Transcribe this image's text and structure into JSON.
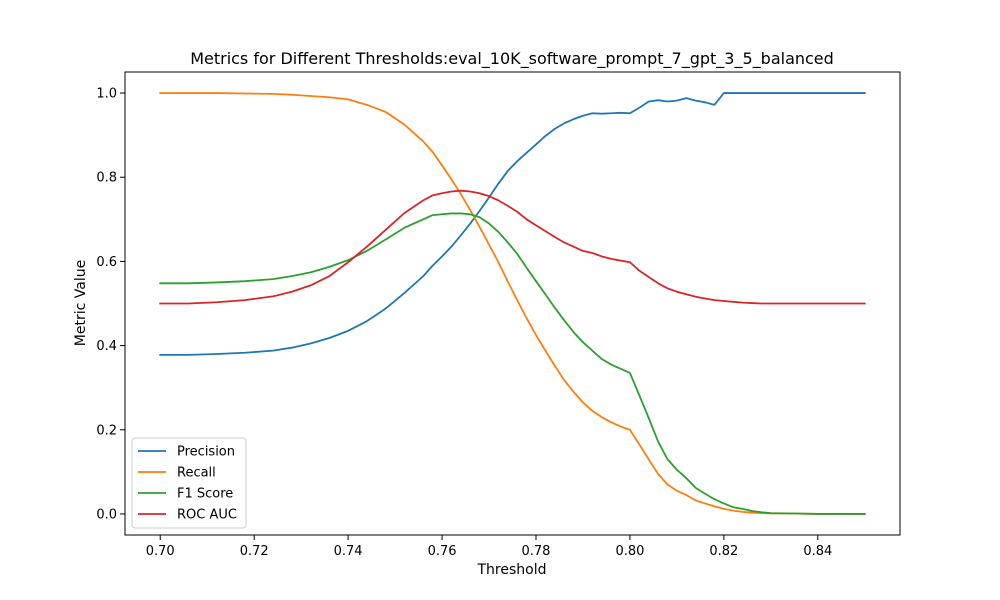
{
  "chart_data": {
    "type": "line",
    "title": "Metrics for Different Thresholds:eval_10K_software_prompt_7_gpt_3_5_balanced",
    "xlabel": "Threshold",
    "ylabel": "Metric Value",
    "xlim": [
      0.6925,
      0.8575
    ],
    "ylim": [
      -0.05,
      1.05
    ],
    "xticks": [
      0.7,
      0.72,
      0.74,
      0.76,
      0.78,
      0.8,
      0.82,
      0.84
    ],
    "xtick_labels": [
      "0.70",
      "0.72",
      "0.74",
      "0.76",
      "0.78",
      "0.80",
      "0.82",
      "0.84"
    ],
    "yticks": [
      0.0,
      0.2,
      0.4,
      0.6,
      0.8,
      1.0
    ],
    "ytick_labels": [
      "0.0",
      "0.2",
      "0.4",
      "0.6",
      "0.8",
      "1.0"
    ],
    "grid": false,
    "legend_position": "lower-left",
    "x": [
      0.7,
      0.706,
      0.712,
      0.718,
      0.724,
      0.728,
      0.732,
      0.736,
      0.74,
      0.744,
      0.748,
      0.752,
      0.756,
      0.758,
      0.76,
      0.762,
      0.764,
      0.766,
      0.768,
      0.77,
      0.772,
      0.774,
      0.776,
      0.778,
      0.78,
      0.782,
      0.784,
      0.786,
      0.788,
      0.79,
      0.792,
      0.794,
      0.796,
      0.798,
      0.8,
      0.802,
      0.804,
      0.806,
      0.808,
      0.81,
      0.812,
      0.814,
      0.816,
      0.818,
      0.82,
      0.822,
      0.824,
      0.826,
      0.828,
      0.83,
      0.835,
      0.84,
      0.845,
      0.85
    ],
    "series": [
      {
        "name": "Precision",
        "color": "#1f77b4",
        "values": [
          0.378,
          0.378,
          0.38,
          0.383,
          0.388,
          0.395,
          0.405,
          0.418,
          0.435,
          0.458,
          0.488,
          0.525,
          0.565,
          0.59,
          0.612,
          0.635,
          0.662,
          0.69,
          0.72,
          0.752,
          0.785,
          0.815,
          0.838,
          0.858,
          0.878,
          0.898,
          0.915,
          0.928,
          0.938,
          0.946,
          0.952,
          0.951,
          0.952,
          0.953,
          0.952,
          0.965,
          0.98,
          0.983,
          0.98,
          0.982,
          0.988,
          0.982,
          0.978,
          0.972,
          1.0,
          1.0,
          1.0,
          1.0,
          1.0,
          1.0,
          1.0,
          1.0,
          1.0,
          1.0
        ]
      },
      {
        "name": "Recall",
        "color": "#ff7f0e",
        "values": [
          1.0,
          1.0,
          1.0,
          0.999,
          0.998,
          0.996,
          0.993,
          0.99,
          0.985,
          0.972,
          0.955,
          0.925,
          0.885,
          0.86,
          0.828,
          0.795,
          0.76,
          0.722,
          0.682,
          0.64,
          0.598,
          0.552,
          0.508,
          0.465,
          0.425,
          0.388,
          0.352,
          0.318,
          0.29,
          0.265,
          0.245,
          0.23,
          0.218,
          0.208,
          0.2,
          0.165,
          0.13,
          0.095,
          0.07,
          0.055,
          0.045,
          0.032,
          0.025,
          0.018,
          0.012,
          0.008,
          0.005,
          0.003,
          0.002,
          0.001,
          0.001,
          0.0,
          0.0,
          0.0
        ]
      },
      {
        "name": "F1 Score",
        "color": "#2ca02c",
        "values": [
          0.548,
          0.548,
          0.55,
          0.553,
          0.558,
          0.565,
          0.574,
          0.587,
          0.603,
          0.625,
          0.652,
          0.68,
          0.7,
          0.71,
          0.712,
          0.714,
          0.714,
          0.712,
          0.705,
          0.69,
          0.67,
          0.645,
          0.618,
          0.585,
          0.553,
          0.522,
          0.49,
          0.46,
          0.432,
          0.408,
          0.388,
          0.368,
          0.355,
          0.345,
          0.335,
          0.282,
          0.228,
          0.172,
          0.13,
          0.105,
          0.085,
          0.062,
          0.048,
          0.035,
          0.025,
          0.016,
          0.012,
          0.007,
          0.004,
          0.002,
          0.001,
          0.0,
          0.0,
          0.0
        ]
      },
      {
        "name": "ROC AUC",
        "color": "#d62728",
        "values": [
          0.5,
          0.5,
          0.503,
          0.508,
          0.517,
          0.528,
          0.543,
          0.565,
          0.598,
          0.635,
          0.675,
          0.715,
          0.745,
          0.757,
          0.762,
          0.766,
          0.768,
          0.766,
          0.762,
          0.755,
          0.745,
          0.732,
          0.718,
          0.7,
          0.686,
          0.672,
          0.658,
          0.645,
          0.635,
          0.625,
          0.62,
          0.612,
          0.606,
          0.602,
          0.598,
          0.578,
          0.563,
          0.548,
          0.536,
          0.528,
          0.522,
          0.516,
          0.512,
          0.508,
          0.506,
          0.504,
          0.502,
          0.501,
          0.5,
          0.5,
          0.5,
          0.5,
          0.5,
          0.5
        ]
      }
    ]
  }
}
